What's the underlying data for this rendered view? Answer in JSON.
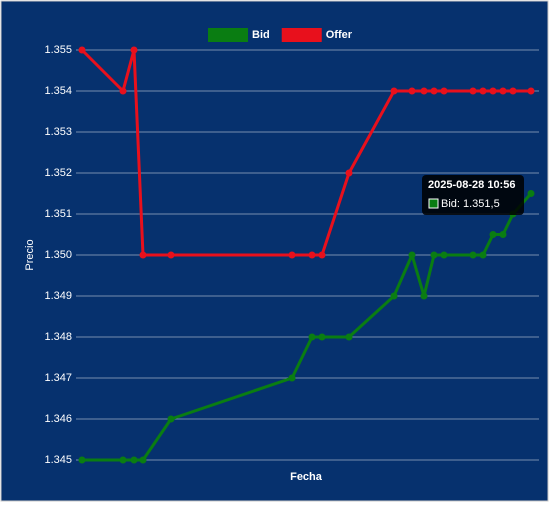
{
  "chart_data": {
    "type": "line",
    "x_label": "Fecha",
    "y_label": "Precio",
    "x": [
      0,
      41,
      52,
      61,
      89,
      210,
      230,
      240,
      267,
      312,
      330,
      342,
      352,
      362,
      391,
      401,
      411,
      421,
      431,
      449
    ],
    "xlim": [
      0,
      449
    ],
    "series": [
      {
        "name": "Bid",
        "color": "#0a7d12",
        "values": [
          1.345,
          1.345,
          1.345,
          1.345,
          1.346,
          1.347,
          1.348,
          1.348,
          1.348,
          1.349,
          1.35,
          1.349,
          1.35,
          1.35,
          1.35,
          1.35,
          1.3505,
          1.3505,
          1.351,
          1.3515
        ]
      },
      {
        "name": "Offer",
        "color": "#e8101c",
        "values": [
          1.355,
          1.354,
          1.355,
          1.35,
          1.35,
          1.35,
          1.35,
          1.35,
          1.352,
          1.354,
          1.354,
          1.354,
          1.354,
          1.354,
          1.354,
          1.354,
          1.354,
          1.354,
          1.354,
          1.354
        ]
      }
    ],
    "ylim": [
      1.345,
      1.355
    ],
    "yticks": [
      1.345,
      1.346,
      1.347,
      1.348,
      1.349,
      {
        "value": 1.35,
        "label": "1.350"
      },
      1.351,
      1.352,
      1.353,
      1.354,
      1.355
    ],
    "grid": true,
    "legend": "top",
    "tooltip": {
      "title": "2025-08-28 10:56",
      "label": "Bid: 1.351,5"
    }
  }
}
